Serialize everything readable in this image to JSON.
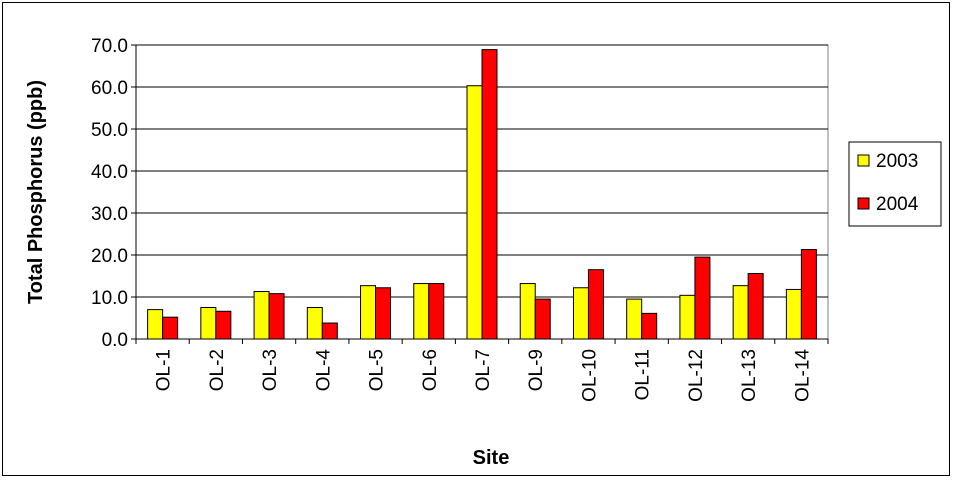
{
  "chart_data": {
    "type": "bar",
    "xlabel": "Site",
    "ylabel": "Total Phosphorus (ppb)",
    "ylim": [
      0,
      70
    ],
    "yticks": [
      "0.0",
      "10.0",
      "20.0",
      "30.0",
      "40.0",
      "50.0",
      "60.0",
      "70.0"
    ],
    "grid": true,
    "legend": "right",
    "categories": [
      "OL-1",
      "OL-2",
      "OL-3",
      "OL-4",
      "OL-5",
      "OL-6",
      "OL-7",
      "OL-9",
      "OL-10",
      "OL-11",
      "OL-12",
      "OL-13",
      "OL-14"
    ],
    "series": [
      {
        "name": "2003",
        "color": "#FFFF00",
        "values": [
          7.0,
          7.5,
          11.3,
          7.5,
          12.7,
          13.2,
          60.3,
          13.2,
          12.2,
          9.5,
          10.4,
          12.7,
          11.8
        ]
      },
      {
        "name": "2004",
        "color": "#FF0000",
        "values": [
          5.2,
          6.6,
          10.8,
          3.8,
          12.2,
          13.2,
          68.9,
          9.5,
          16.5,
          6.1,
          19.5,
          15.6,
          21.3
        ]
      }
    ]
  }
}
